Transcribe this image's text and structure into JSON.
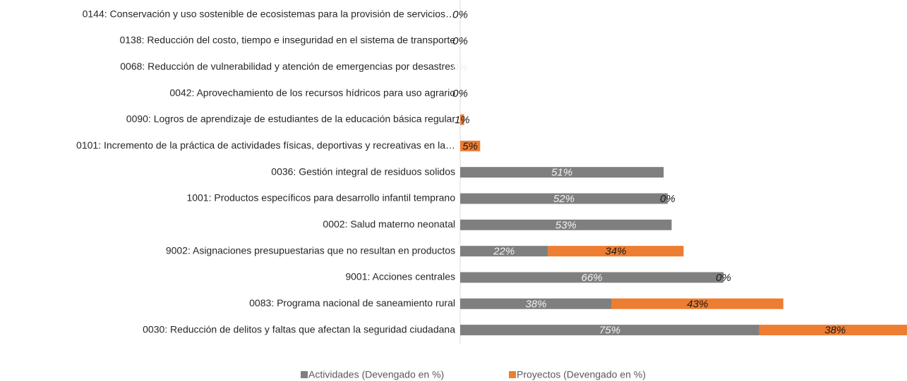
{
  "chart_data": {
    "type": "stacked-barh",
    "categories": [
      "0144: Conservación y uso sostenible de ecosistemas para la provisión de servicios…",
      "0138: Reducción del costo, tiempo e inseguridad en el sistema de transporte",
      "0068: Reducción de vulnerabilidad y atención de emergencias por desastres",
      "0042: Aprovechamiento de los recursos hídricos para uso agrario",
      "0090: Logros de aprendizaje de estudiantes de la educación básica regular",
      "0101: Incremento de la práctica de actividades físicas, deportivas y recreativas en la…",
      "0036: Gestión integral de residuos solidos",
      "1001: Productos específicos para desarrollo infantil temprano",
      "0002: Salud materno neonatal",
      "9002: Asignaciones presupuestarias que no resultan en productos",
      "9001: Acciones centrales",
      "0083: Programa nacional de saneamiento rural",
      "0030: Reducción de delitos y faltas que afectan la seguridad ciudadana"
    ],
    "series": [
      {
        "name": "Actividades (Devengado en %)",
        "color": "#7f7f7f",
        "label_color": "#f2f2f2",
        "values": [
          null,
          null,
          0,
          null,
          null,
          null,
          51,
          52,
          53,
          22,
          66,
          38,
          75
        ],
        "value_labels": [
          null,
          null,
          "0%",
          null,
          null,
          null,
          "51%",
          "52%",
          "53%",
          "22%",
          "66%",
          "38%",
          "75%"
        ]
      },
      {
        "name": "Proyectos (Devengado en %)",
        "color": "#ed7d31",
        "label_color": "#1a1a1a",
        "values": [
          0,
          0,
          null,
          0,
          1,
          5,
          null,
          0,
          null,
          34,
          0,
          43,
          38
        ],
        "value_labels": [
          "0%",
          "0%",
          null,
          "0%",
          "1%",
          "5%",
          null,
          "0%",
          null,
          "34%",
          "0%",
          "43%",
          "38%"
        ]
      }
    ],
    "xlim": [
      0,
      112
    ],
    "legend": "bottom"
  }
}
